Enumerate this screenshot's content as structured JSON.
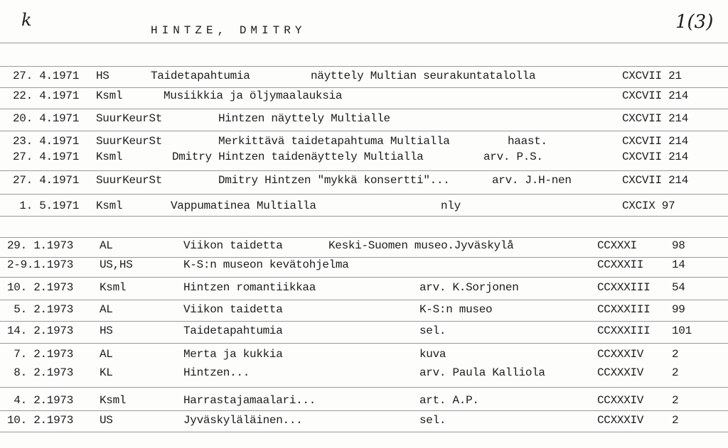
{
  "card": {
    "corner_mark": "k",
    "name": "HINTZE, DMITRY",
    "card_number": "1(3)"
  },
  "entries_1971": [
    {
      "date": "27. 4.1971",
      "source": "HS",
      "title": "Taidetapahtumia",
      "note": "näyttely Multian seurakuntatalolla",
      "ref": "CXCVII 21"
    },
    {
      "date": "22. 4.1971",
      "source": "Ksml",
      "title": "Musiikkia ja öljymaalauksia",
      "note": "",
      "ref": "CXCVII 214"
    },
    {
      "date": "20. 4.1971",
      "source": "SuurKeurSt",
      "title": "Hintzen näyttely Multialle",
      "note": "",
      "ref": "CXCVII 214"
    },
    {
      "date": "23. 4.1971",
      "source": "SuurKeurSt",
      "title": "Merkittävä taidetapahtuma Multialla",
      "note": "haast.",
      "ref": "CXCVII 214"
    },
    {
      "date": "27. 4.1971",
      "source": "Ksml",
      "title": "Dmitry Hintzen taidenäyttely Multialla",
      "note": "arv. P.S.",
      "ref": "CXCVII 214"
    },
    {
      "date": "27. 4.1971",
      "source": "SuurKeurSt",
      "title": "Dmitry Hintzen \"mykkä konsertti\"...",
      "note": "arv. J.H-nen",
      "ref": "CXCVII 214"
    },
    {
      "date": " 1. 5.1971",
      "source": "Ksml",
      "title": "Vappumatinea Multialla",
      "note": "nly",
      "ref": "CXCIX 97"
    }
  ],
  "entries_1973": [
    {
      "date": "29. 1.1973",
      "source": "AL",
      "title": "Viikon taidetta",
      "note": "Keski-Suomen museo.Jyväskylå",
      "ref": "CCXXXI",
      "page": "98"
    },
    {
      "date": "2-9.1.1973",
      "source": "US,HS",
      "title": "K-S:n museon kevätohjelma",
      "note": "",
      "ref": "CCXXXII",
      "page": "14"
    },
    {
      "date": "10. 2.1973",
      "source": "Ksml",
      "title": "Hintzen romantiikkaa",
      "note": "arv. K.Sorjonen",
      "ref": "CCXXXIII",
      "page": "54"
    },
    {
      "date": " 5. 2.1973",
      "source": "AL",
      "title": "Viikon taidetta",
      "note": "K-S:n museo",
      "ref": "CCXXXIII",
      "page": "99"
    },
    {
      "date": "14. 2.1973",
      "source": "HS",
      "title": "Taidetapahtumia",
      "note": "sel.",
      "ref": "CCXXXIII",
      "page": "101"
    },
    {
      "date": " 7. 2.1973",
      "source": "AL",
      "title": "Merta ja kukkia",
      "note": "kuva",
      "ref": "CCXXXIV",
      "page": "2"
    },
    {
      "date": " 8. 2.1973",
      "source": "KL",
      "title": "Hintzen...",
      "note": "arv. Paula Kalliola",
      "ref": "CCXXXIV",
      "page": "2"
    },
    {
      "date": " 4. 2.1973",
      "source": "Ksml",
      "title": "Harrastajamaalari...",
      "note": "art. A.P.",
      "ref": "CCXXXIV",
      "page": "2"
    },
    {
      "date": "10. 2.1973",
      "source": "US",
      "title": "Jyväskyläläinen...",
      "note": "sel.",
      "ref": "CCXXXIV",
      "page": "2"
    }
  ]
}
